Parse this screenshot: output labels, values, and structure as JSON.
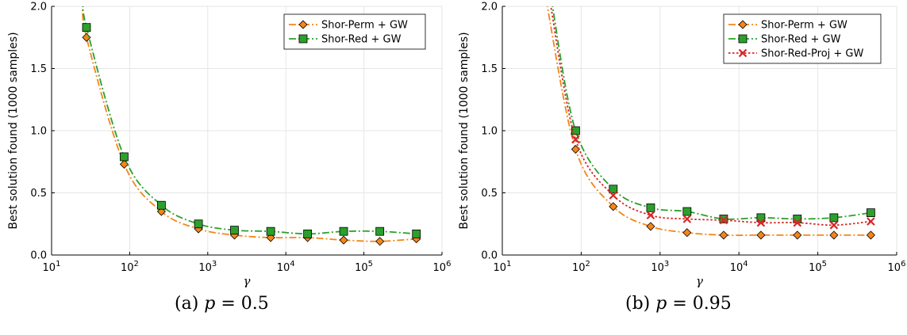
{
  "chart_data": [
    {
      "type": "line",
      "caption": "(a) p = 0.5",
      "xlabel": "γ",
      "ylabel": "Best solution found (1000 samples)",
      "xscale": "log",
      "xlim": [
        10,
        1000000
      ],
      "ylim": [
        0,
        2.0
      ],
      "xticks": [
        "10^1",
        "10^2",
        "10^3",
        "10^4",
        "10^5",
        "10^6"
      ],
      "yticks": [
        "0.0",
        "0.5",
        "1.0",
        "1.5",
        "2.0"
      ],
      "grid": true,
      "legend_position": "top-right",
      "series": [
        {
          "name": "Shor-Perm + GW",
          "color": "#f58518",
          "marker": "diamond",
          "dash": "dashdot",
          "x": [
            28,
            85,
            255,
            760,
            2200,
            6400,
            19000,
            55000,
            160000,
            470000
          ],
          "y": [
            1.75,
            0.73,
            0.35,
            0.21,
            0.16,
            0.14,
            0.14,
            0.12,
            0.11,
            0.13
          ],
          "curve_head": {
            "x": 25.5,
            "y": 2.05
          }
        },
        {
          "name": "Shor-Red + GW",
          "color": "#2ca02c",
          "marker": "square",
          "dash": "dashdot",
          "x": [
            28,
            85,
            255,
            760,
            2200,
            6400,
            19000,
            55000,
            160000,
            470000
          ],
          "y": [
            1.83,
            0.79,
            0.4,
            0.25,
            0.2,
            0.19,
            0.17,
            0.19,
            0.19,
            0.17
          ],
          "curve_head": {
            "x": 26,
            "y": 2.05
          }
        }
      ]
    },
    {
      "type": "line",
      "caption": "(b) p = 0.95",
      "xlabel": "γ",
      "ylabel": "Best solution found (1000 samples)",
      "xscale": "log",
      "xlim": [
        10,
        1000000
      ],
      "ylim": [
        0,
        2.0
      ],
      "xticks": [
        "10^1",
        "10^2",
        "10^3",
        "10^4",
        "10^5",
        "10^6"
      ],
      "yticks": [
        "0.0",
        "0.5",
        "1.0",
        "1.5",
        "2.0"
      ],
      "grid": true,
      "legend_position": "top-right",
      "series": [
        {
          "name": "Shor-Perm + GW",
          "color": "#f58518",
          "marker": "diamond",
          "dash": "dashdot",
          "x": [
            85,
            255,
            760,
            2200,
            6400,
            19000,
            55000,
            160000,
            470000
          ],
          "y": [
            0.85,
            0.39,
            0.23,
            0.18,
            0.16,
            0.16,
            0.16,
            0.16,
            0.16
          ],
          "curve_head": {
            "x": 36,
            "y": 2.05
          }
        },
        {
          "name": "Shor-Red + GW",
          "color": "#2ca02c",
          "marker": "square",
          "dash": "dashdot",
          "x": [
            85,
            255,
            760,
            2200,
            6400,
            19000,
            55000,
            160000,
            470000
          ],
          "y": [
            1.0,
            0.53,
            0.38,
            0.35,
            0.29,
            0.3,
            0.29,
            0.3,
            0.34
          ],
          "curve_head": {
            "x": 42,
            "y": 2.05
          }
        },
        {
          "name": "Shor-Red-Proj + GW",
          "color": "#d62728",
          "marker": "x",
          "dash": "dotted",
          "x": [
            85,
            255,
            760,
            2200,
            6400,
            19000,
            55000,
            160000,
            470000
          ],
          "y": [
            0.93,
            0.48,
            0.32,
            0.29,
            0.28,
            0.26,
            0.26,
            0.24,
            0.27
          ],
          "curve_head": {
            "x": 40,
            "y": 2.05
          }
        }
      ]
    }
  ]
}
